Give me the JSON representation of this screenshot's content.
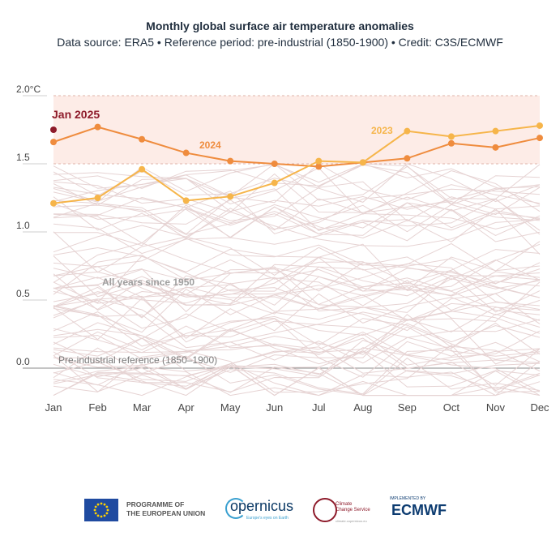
{
  "title": "Monthly global surface air temperature anomalies",
  "subtitle": "Data source: ERA5 • Reference period: pre-industrial (1850-1900) • Credit: C3S/ECMWF",
  "logos": {
    "eu_line1": "PROGRAMME OF",
    "eu_line2": "THE EUROPEAN UNION",
    "copernicus": "opernicus",
    "copernicus_tagline": "Europe's eyes on Earth",
    "c3s_line1": "Climate",
    "c3s_line2": "Change Service",
    "c3s_url": "climate.copernicus.eu",
    "ecmwf_top": "IMPLEMENTED BY",
    "ecmwf": "ECMWF"
  },
  "chart_data": {
    "type": "line",
    "title": "Monthly global surface air temperature anomalies",
    "subtitle": "Data source: ERA5 • Reference period: pre-industrial (1850-1900) • Credit: C3S/ECMWF",
    "categories": [
      "Jan",
      "Feb",
      "Mar",
      "Apr",
      "May",
      "Jun",
      "Jul",
      "Aug",
      "Sep",
      "Oct",
      "Nov",
      "Dec"
    ],
    "ylim": [
      -0.2,
      2.0
    ],
    "yticks": [
      0.0,
      0.5,
      1.0,
      1.5,
      2.0
    ],
    "ytick_labels": [
      "0.0",
      "0.5",
      "1.0",
      "1.5",
      "2.0°C"
    ],
    "highlight_band": {
      "from": 1.5,
      "to": 2.0,
      "color": "#fdece7"
    },
    "reference_line": {
      "value": 0.0,
      "label": "Pre-industrial reference (1850–1900)"
    },
    "background_label": "All years since 1950",
    "background_color": "#e6d3d3",
    "series": [
      {
        "name": "2024",
        "color": "#ef8c3e",
        "values": [
          1.66,
          1.77,
          1.68,
          1.58,
          1.52,
          1.5,
          1.48,
          1.51,
          1.54,
          1.65,
          1.62,
          1.69
        ]
      },
      {
        "name": "2023",
        "color": "#f6b54a",
        "values": [
          1.21,
          1.25,
          1.46,
          1.23,
          1.26,
          1.36,
          1.52,
          1.51,
          1.74,
          1.7,
          1.74,
          1.78
        ]
      },
      {
        "name": "Jan 2025",
        "color": "#8e1b2b",
        "values": [
          1.75,
          null,
          null,
          null,
          null,
          null,
          null,
          null,
          null,
          null,
          null,
          null
        ]
      }
    ]
  }
}
